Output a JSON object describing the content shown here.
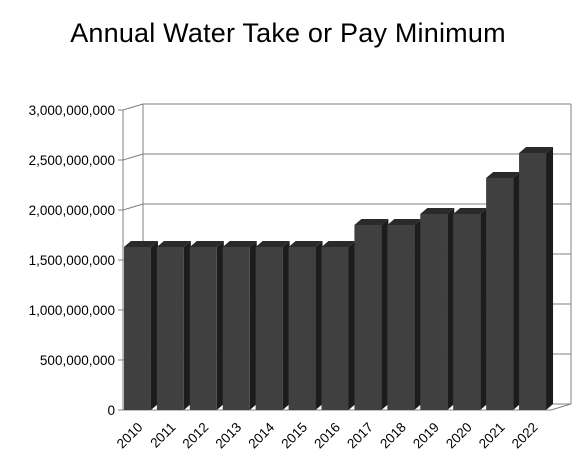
{
  "chart_data": {
    "type": "bar",
    "title": "Annual Water Take or Pay Minimum",
    "xlabel": "",
    "ylabel": "",
    "categories": [
      "2010",
      "2011",
      "2012",
      "2013",
      "2014",
      "2015",
      "2016",
      "2017",
      "2018",
      "2019",
      "2020",
      "2021",
      "2022"
    ],
    "values": [
      1630000000,
      1630000000,
      1630000000,
      1630000000,
      1630000000,
      1630000000,
      1630000000,
      1850000000,
      1850000000,
      1960000000,
      1960000000,
      2320000000,
      2570000000
    ],
    "ylim": [
      0,
      3000000000
    ],
    "yticks": [
      0,
      500000000,
      1000000000,
      1500000000,
      2000000000,
      2500000000,
      3000000000
    ],
    "ytick_labels": [
      "0",
      "500,000,000",
      "1,000,000,000",
      "1,500,000,000",
      "2,000,000,000",
      "2,500,000,000",
      "3,000,000,000"
    ],
    "grid": true,
    "style": "3d-bar",
    "colors": {
      "bar_front": "#404040",
      "bar_top": "#2a2a2a",
      "bar_side": "#1c1c1c",
      "grid": "#808080"
    }
  }
}
